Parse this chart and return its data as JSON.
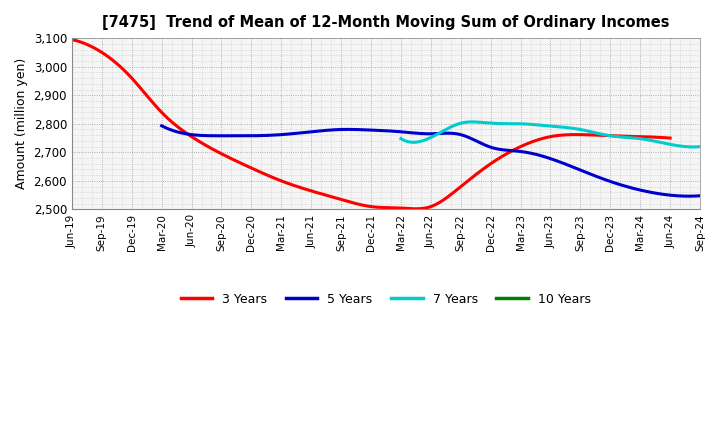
{
  "title": "[7475]  Trend of Mean of 12-Month Moving Sum of Ordinary Incomes",
  "ylabel": "Amount (million yen)",
  "ylim": [
    2500,
    3100
  ],
  "yticks": [
    2500,
    2600,
    2700,
    2800,
    2900,
    3000,
    3100
  ],
  "x_labels": [
    "Jun-19",
    "Sep-19",
    "Dec-19",
    "Mar-20",
    "Jun-20",
    "Sep-20",
    "Dec-20",
    "Mar-21",
    "Jun-21",
    "Sep-21",
    "Dec-21",
    "Mar-22",
    "Jun-22",
    "Sep-22",
    "Dec-22",
    "Mar-23",
    "Jun-23",
    "Sep-23",
    "Dec-23",
    "Mar-24",
    "Jun-24",
    "Sep-24"
  ],
  "series": {
    "3 Years": {
      "color": "#FF0000",
      "data": [
        3095,
        3050,
        2960,
        2840,
        2755,
        2695,
        2645,
        2600,
        2565,
        2535,
        2510,
        2505,
        2510,
        2580,
        2660,
        2720,
        2755,
        2762,
        2758,
        2755,
        2750,
        null
      ]
    },
    "5 Years": {
      "color": "#0000CC",
      "data": [
        null,
        null,
        null,
        2793,
        2762,
        2758,
        2758,
        2762,
        2772,
        2780,
        2778,
        2772,
        2765,
        2762,
        2718,
        2703,
        2678,
        2638,
        2598,
        2568,
        2550,
        2548
      ]
    },
    "7 Years": {
      "color": "#00CCCC",
      "data": [
        null,
        null,
        null,
        null,
        null,
        null,
        null,
        null,
        null,
        null,
        null,
        2748,
        2752,
        2802,
        2802,
        2800,
        2792,
        2780,
        2758,
        2748,
        2728,
        2720
      ]
    },
    "10 Years": {
      "color": "#008000",
      "data": [
        null,
        null,
        null,
        null,
        null,
        null,
        null,
        null,
        null,
        null,
        null,
        null,
        null,
        null,
        null,
        null,
        null,
        null,
        null,
        null,
        null,
        null
      ]
    }
  },
  "legend_labels": [
    "3 Years",
    "5 Years",
    "7 Years",
    "10 Years"
  ],
  "legend_colors": [
    "#FF0000",
    "#0000CC",
    "#00CCCC",
    "#008000"
  ],
  "background_color": "#FFFFFF",
  "plot_bg_color": "#F5F5F5"
}
